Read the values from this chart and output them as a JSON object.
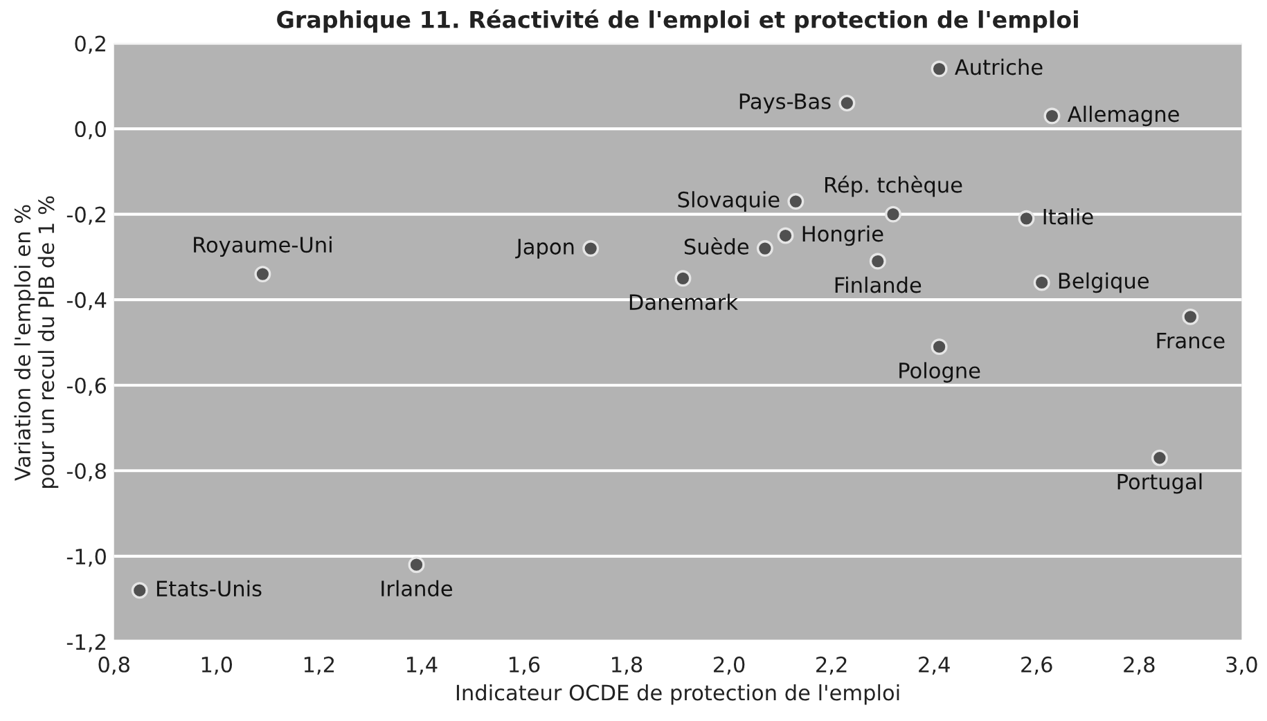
{
  "chart_data": {
    "type": "scatter",
    "title": "Graphique 11. Réactivité de l'emploi et protection de l'emploi",
    "xlabel": "Indicateur OCDE de protection de l'emploi",
    "ylabel": "Variation de l'emploi en %\npour un recul du PIB de 1 %",
    "x": [
      1.09,
      1.73,
      1.91,
      2.07,
      2.11,
      2.13,
      2.23,
      2.41,
      2.63,
      2.32,
      2.58,
      2.29,
      2.61,
      2.9,
      2.41,
      2.84,
      0.85,
      1.39
    ],
    "series": [
      {
        "color": "#505050",
        "values": [
          -0.34,
          -0.28,
          -0.35,
          -0.28,
          -0.25,
          -0.17,
          0.06,
          0.14,
          0.03,
          -0.2,
          -0.21,
          -0.31,
          -0.36,
          -0.44,
          -0.51,
          -0.77,
          -1.08,
          -1.02
        ]
      }
    ],
    "annotations": [
      {
        "text": "Royaume-Uni",
        "x": 1.09,
        "y": -0.34
      },
      {
        "text": "Japon",
        "x": 1.73,
        "y": -0.28
      },
      {
        "text": "Danemark",
        "x": 1.91,
        "y": -0.35
      },
      {
        "text": "Suède",
        "x": 2.07,
        "y": -0.28
      },
      {
        "text": "Hongrie",
        "x": 2.11,
        "y": -0.25
      },
      {
        "text": "Slovaquie",
        "x": 2.13,
        "y": -0.17
      },
      {
        "text": "Pays-Bas",
        "x": 2.23,
        "y": 0.06
      },
      {
        "text": "Autriche",
        "x": 2.41,
        "y": 0.14
      },
      {
        "text": "Allemagne",
        "x": 2.63,
        "y": 0.03
      },
      {
        "text": "Rép. tchèque",
        "x": 2.32,
        "y": -0.2
      },
      {
        "text": "Italie",
        "x": 2.58,
        "y": -0.21
      },
      {
        "text": "Finlande",
        "x": 2.29,
        "y": -0.31
      },
      {
        "text": "Belgique",
        "x": 2.61,
        "y": -0.36
      },
      {
        "text": "France",
        "x": 2.9,
        "y": -0.44
      },
      {
        "text": "Pologne",
        "x": 2.41,
        "y": -0.51
      },
      {
        "text": "Portugal",
        "x": 2.84,
        "y": -0.77
      },
      {
        "text": "Etats-Unis",
        "x": 0.85,
        "y": -1.08
      },
      {
        "text": "Irlande",
        "x": 1.39,
        "y": -1.02
      }
    ],
    "xlim": [
      0.8,
      3.0
    ],
    "xticks": [
      {
        "value": 0.8,
        "label": "0,8"
      },
      {
        "value": 1.0,
        "label": "1,0"
      },
      {
        "value": 1.2,
        "label": "1,2"
      },
      {
        "value": 1.4,
        "label": "1,4"
      },
      {
        "value": 1.6,
        "label": "1,6"
      },
      {
        "value": 1.8,
        "label": "1,8"
      },
      {
        "value": 2.0,
        "label": "2,0"
      },
      {
        "value": 2.2,
        "label": "2,2"
      },
      {
        "value": 2.4,
        "label": "2,4"
      },
      {
        "value": 2.6,
        "label": "2,6"
      },
      {
        "value": 2.8,
        "label": "2,8"
      },
      {
        "value": 3.0,
        "label": "3,0"
      }
    ],
    "ylim": [
      -1.2,
      0.2
    ],
    "yticks": [
      {
        "value": -1.2,
        "label": "-1,2"
      },
      {
        "value": -1.0,
        "label": "-1,0"
      },
      {
        "value": -0.8,
        "label": "-0,8"
      },
      {
        "value": -0.6,
        "label": "-0,6"
      },
      {
        "value": -0.4,
        "label": "-0,4"
      },
      {
        "value": -0.2,
        "label": "-0,2"
      },
      {
        "value": 0.0,
        "label": "0,0"
      },
      {
        "value": 0.2,
        "label": "0,2"
      }
    ],
    "grid": "y",
    "marker": "circle"
  }
}
